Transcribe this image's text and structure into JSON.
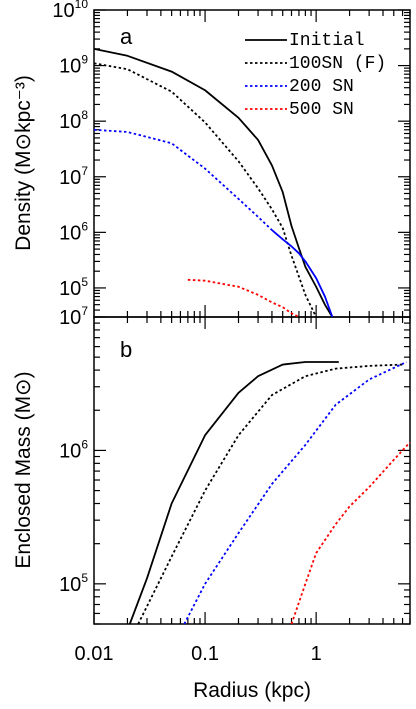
{
  "chart_data": [
    {
      "type": "line",
      "panel_label": "a",
      "ylabel": "Density (M⊙kpc⁻³)",
      "x_scale": "log",
      "y_scale": "log",
      "xlim": [
        0.01,
        7
      ],
      "ylim": [
        30000,
        10000000000
      ],
      "y_tick_labels": [
        {
          "value": 10000000000,
          "base": "10",
          "exp": "10"
        },
        {
          "value": 1000000000,
          "base": "10",
          "exp": "9"
        },
        {
          "value": 100000000,
          "base": "10",
          "exp": "8"
        },
        {
          "value": 10000000,
          "base": "10",
          "exp": "7"
        },
        {
          "value": 1000000,
          "base": "10",
          "exp": "6"
        },
        {
          "value": 100000,
          "base": "10",
          "exp": "5"
        }
      ],
      "legend_position": "top-right",
      "series": [
        {
          "name": "Initial",
          "color": "#000000",
          "style": "solid",
          "x": [
            0.01,
            0.02,
            0.05,
            0.1,
            0.2,
            0.3,
            0.4,
            0.5,
            0.6,
            0.7,
            0.8,
            1.0,
            1.2,
            1.4
          ],
          "y": [
            2000000000,
            1500000000,
            780000000,
            360000000,
            115000000,
            46000000,
            16000000,
            5300000,
            1300000,
            520000,
            240000,
            105000,
            50000,
            30000
          ]
        },
        {
          "name": "100SN (F)",
          "color": "#000000",
          "style": "dotted",
          "x": [
            0.01,
            0.02,
            0.05,
            0.1,
            0.2,
            0.3,
            0.4,
            0.5,
            0.6,
            0.7,
            0.8,
            1.0
          ],
          "y": [
            1100000000,
            860000000,
            340000000,
            95000000,
            19000000,
            6200000,
            2600000,
            1200000,
            380000,
            160000,
            75000,
            30000
          ]
        },
        {
          "name": "200 SN",
          "color": "#0000ff",
          "style": "dotted",
          "x": [
            0.01,
            0.02,
            0.05,
            0.1,
            0.2,
            0.3,
            0.4
          ],
          "y": [
            70000000,
            64000000,
            40000000,
            14000000,
            4000000,
            1900000,
            1100000
          ]
        },
        {
          "name": "200 SN",
          "color": "#0000ff",
          "style": "solid",
          "x": [
            0.4,
            0.5,
            0.6,
            0.7,
            0.8,
            1.0,
            1.2,
            1.4
          ],
          "y": [
            1100000,
            750000,
            560000,
            420000,
            300000,
            150000,
            70000,
            30000
          ]
        },
        {
          "name": "500 SN",
          "color": "#ff0000",
          "style": "dotted",
          "x": [
            0.07,
            0.1,
            0.2,
            0.3,
            0.4,
            0.5,
            0.6,
            0.7
          ],
          "y": [
            140000,
            135000,
            105000,
            75000,
            55000,
            45000,
            35000,
            30000
          ]
        }
      ]
    },
    {
      "type": "line",
      "panel_label": "b",
      "ylabel": "Enclosed Mass (M⊙)",
      "xlabel": "Radius (kpc)",
      "x_scale": "log",
      "y_scale": "log",
      "xlim": [
        0.01,
        7
      ],
      "ylim": [
        50000,
        10000000
      ],
      "x_tick_labels": [
        {
          "value": 0.01,
          "label": "0.01"
        },
        {
          "value": 0.1,
          "label": "0.1"
        },
        {
          "value": 1,
          "label": "1"
        }
      ],
      "y_tick_labels": [
        {
          "value": 10000000,
          "base": "10",
          "exp": "7"
        },
        {
          "value": 1000000,
          "base": "10",
          "exp": "6"
        },
        {
          "value": 100000,
          "base": "10",
          "exp": "5"
        }
      ],
      "series": [
        {
          "name": "Initial",
          "color": "#000000",
          "style": "solid",
          "x": [
            0.021,
            0.03,
            0.05,
            0.1,
            0.2,
            0.3,
            0.5,
            0.8,
            1.0,
            1.6
          ],
          "y": [
            50000,
            110000,
            400000,
            1300000,
            2700000,
            3600000,
            4400000,
            4600000,
            4600000,
            4600000
          ]
        },
        {
          "name": "100SN (F)",
          "color": "#000000",
          "style": "dotted",
          "x": [
            0.025,
            0.05,
            0.1,
            0.2,
            0.4,
            0.8,
            1.5,
            3.0,
            6.0
          ],
          "y": [
            50000,
            160000,
            500000,
            1300000,
            2600000,
            3600000,
            4100000,
            4300000,
            4400000
          ]
        },
        {
          "name": "200 SN",
          "color": "#0000ff",
          "style": "dotted",
          "x": [
            0.065,
            0.1,
            0.2,
            0.4,
            0.8,
            1.5,
            3.0,
            6.5
          ],
          "y": [
            50000,
            100000,
            240000,
            560000,
            1100000,
            2200000,
            3400000,
            4600000
          ]
        },
        {
          "name": "500 SN",
          "color": "#ff0000",
          "style": "dotted",
          "x": [
            0.6,
            0.8,
            1.0,
            1.5,
            2.0,
            3.0,
            5.0,
            7.0
          ],
          "y": [
            50000,
            100000,
            170000,
            280000,
            380000,
            530000,
            850000,
            1150000
          ]
        }
      ]
    }
  ],
  "legend": [
    {
      "label": "Initial",
      "color": "#000000",
      "style": "solid"
    },
    {
      "label": "100SN (F)",
      "color": "#000000",
      "style": "dotted"
    },
    {
      "label": "200 SN",
      "color": "#0000ff",
      "style": "dotted"
    },
    {
      "label": "500 SN",
      "color": "#ff0000",
      "style": "dotted"
    }
  ]
}
